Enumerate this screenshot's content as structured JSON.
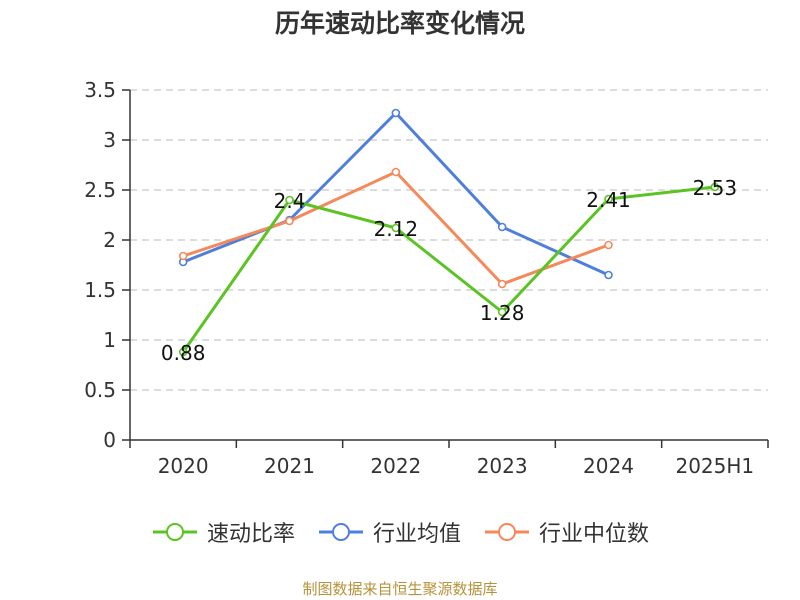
{
  "title": "历年速动比率变化情况",
  "source": "制图数据来自恒生聚源数据库",
  "colors": {
    "axis": "#333333",
    "grid": "#c8c8c8"
  },
  "chart_data": {
    "type": "line",
    "title": "历年速动比率变化情况",
    "categories": [
      "2020",
      "2021",
      "2022",
      "2023",
      "2024",
      "2025H1"
    ],
    "ylim": [
      0,
      3.5
    ],
    "yticks": [
      "0",
      "0.5",
      "1",
      "1.5",
      "2",
      "2.5",
      "3",
      "3.5"
    ],
    "grid": true,
    "legend_position": "bottom",
    "series": [
      {
        "name": "速动比率",
        "color": "#5bc324",
        "values": [
          0.88,
          2.4,
          2.12,
          1.28,
          2.41,
          2.53
        ],
        "labels": [
          "0.88",
          "2.4",
          "2.12",
          "1.28",
          "2.41",
          "2.53"
        ]
      },
      {
        "name": "行业均值",
        "color": "#4f7fdc",
        "values": [
          1.78,
          2.2,
          3.27,
          2.13,
          1.65,
          null
        ]
      },
      {
        "name": "行业中位数",
        "color": "#f5895a",
        "values": [
          1.84,
          2.19,
          2.68,
          1.56,
          1.95,
          null
        ]
      }
    ]
  }
}
